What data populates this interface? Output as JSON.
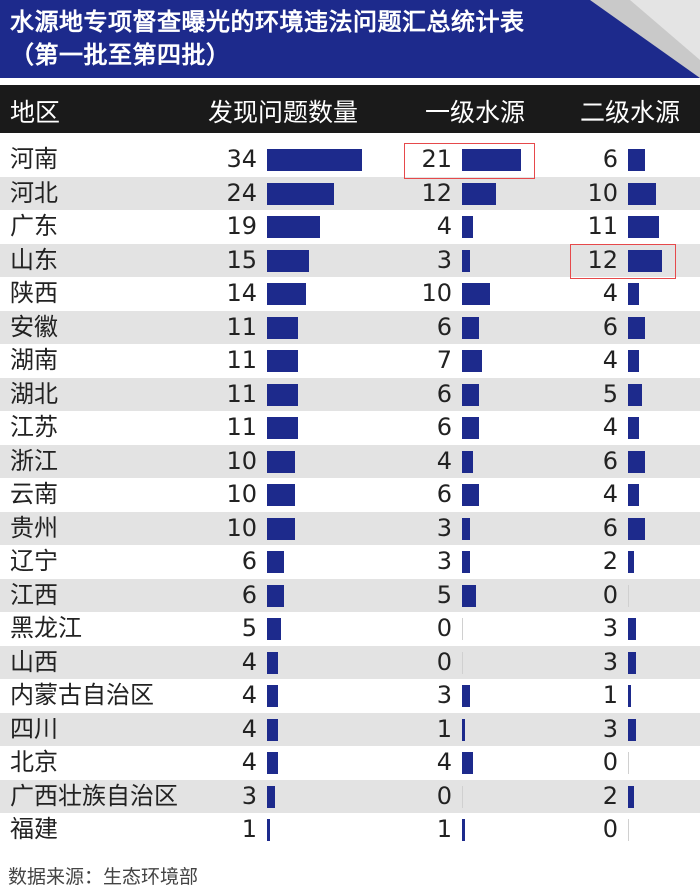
{
  "title_line1": "水源地专项督查曝光的环境违法问题汇总统计表",
  "title_line2": "（第一批至第四批）",
  "headers": {
    "region": "地区",
    "total": "发现问题数量",
    "level1": "一级水源",
    "level2": "二级水源"
  },
  "source": "数据来源：生态环境部",
  "colors": {
    "bar": "#1d2a8c",
    "header_bg": "#1d2a8c",
    "highlight": "#e6494b",
    "row_alt": "#e3e3e3"
  },
  "chart_data": {
    "type": "table",
    "columns": [
      "地区",
      "发现问题数量",
      "一级水源",
      "二级水源"
    ],
    "rows": [
      {
        "region": "河南",
        "total": 34,
        "level1": 21,
        "level2": 6
      },
      {
        "region": "河北",
        "total": 24,
        "level1": 12,
        "level2": 10
      },
      {
        "region": "广东",
        "total": 19,
        "level1": 4,
        "level2": 11
      },
      {
        "region": "山东",
        "total": 15,
        "level1": 3,
        "level2": 12
      },
      {
        "region": "陕西",
        "total": 14,
        "level1": 10,
        "level2": 4
      },
      {
        "region": "安徽",
        "total": 11,
        "level1": 6,
        "level2": 6
      },
      {
        "region": "湖南",
        "total": 11,
        "level1": 7,
        "level2": 4
      },
      {
        "region": "湖北",
        "total": 11,
        "level1": 6,
        "level2": 5
      },
      {
        "region": "江苏",
        "total": 11,
        "level1": 6,
        "level2": 4
      },
      {
        "region": "浙江",
        "total": 10,
        "level1": 4,
        "level2": 6
      },
      {
        "region": "云南",
        "total": 10,
        "level1": 6,
        "level2": 4
      },
      {
        "region": "贵州",
        "total": 10,
        "level1": 3,
        "level2": 6
      },
      {
        "region": "辽宁",
        "total": 6,
        "level1": 3,
        "level2": 2
      },
      {
        "region": "江西",
        "total": 6,
        "level1": 5,
        "level2": 0
      },
      {
        "region": "黑龙江",
        "total": 5,
        "level1": 0,
        "level2": 3
      },
      {
        "region": "山西",
        "total": 4,
        "level1": 0,
        "level2": 3
      },
      {
        "region": "内蒙古自治区",
        "total": 4,
        "level1": 3,
        "level2": 1
      },
      {
        "region": "四川",
        "total": 4,
        "level1": 1,
        "level2": 3
      },
      {
        "region": "北京",
        "total": 4,
        "level1": 4,
        "level2": 0
      },
      {
        "region": "广西壮族自治区",
        "total": 3,
        "level1": 0,
        "level2": 2
      },
      {
        "region": "福建",
        "total": 1,
        "level1": 1,
        "level2": 0
      }
    ],
    "highlighted": [
      {
        "row": 0,
        "column": "level1"
      },
      {
        "row": 3,
        "column": "level2"
      }
    ]
  }
}
